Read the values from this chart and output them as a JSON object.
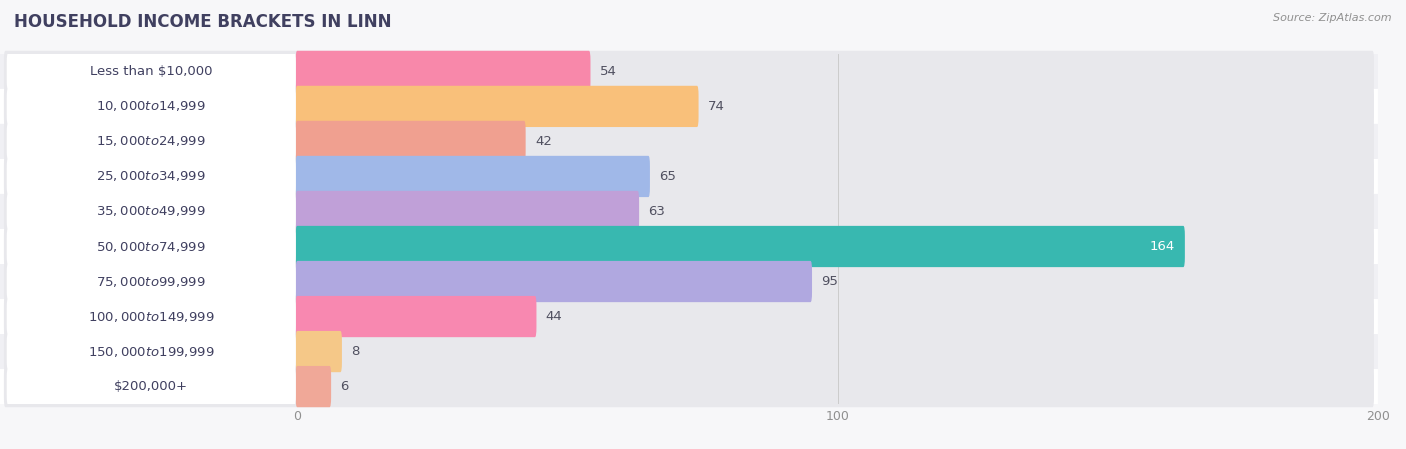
{
  "title": "HOUSEHOLD INCOME BRACKETS IN LINN",
  "source": "Source: ZipAtlas.com",
  "categories": [
    "Less than $10,000",
    "$10,000 to $14,999",
    "$15,000 to $24,999",
    "$25,000 to $34,999",
    "$35,000 to $49,999",
    "$50,000 to $74,999",
    "$75,000 to $99,999",
    "$100,000 to $149,999",
    "$150,000 to $199,999",
    "$200,000+"
  ],
  "values": [
    54,
    74,
    42,
    65,
    63,
    164,
    95,
    44,
    8,
    6
  ],
  "bar_colors": [
    "#f888aa",
    "#f9c07a",
    "#f0a090",
    "#a0b8e8",
    "#c0a0d8",
    "#38b8b0",
    "#b0a8e0",
    "#f888b0",
    "#f5c888",
    "#f0a898"
  ],
  "track_color": "#e8e8ec",
  "label_bg_color": "#ffffff",
  "xlim": [
    0,
    200
  ],
  "xticks": [
    0,
    100,
    200
  ],
  "bar_height": 0.62,
  "title_fontsize": 12,
  "label_fontsize": 9.5,
  "value_fontsize": 9.5,
  "background_color": "#f7f7f9",
  "title_color": "#404060",
  "source_color": "#909090",
  "value_color_normal": "#505060",
  "value_color_max": "#ffffff",
  "row_colors": [
    "#f0f0f4",
    "#ffffff"
  ]
}
